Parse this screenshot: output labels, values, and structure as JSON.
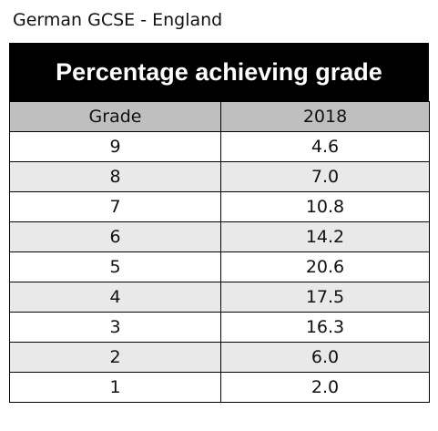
{
  "caption": "German GCSE - England",
  "chart_data": {
    "type": "table",
    "title": "Percentage achieving grade",
    "columns": [
      "Grade",
      "2018"
    ],
    "rows": [
      [
        "9",
        "4.6"
      ],
      [
        "8",
        "7.0"
      ],
      [
        "7",
        "10.8"
      ],
      [
        "6",
        "14.2"
      ],
      [
        "5",
        "20.6"
      ],
      [
        "4",
        "17.5"
      ],
      [
        "3",
        "16.3"
      ],
      [
        "2",
        "6.0"
      ],
      [
        "1",
        "2.0"
      ]
    ]
  }
}
